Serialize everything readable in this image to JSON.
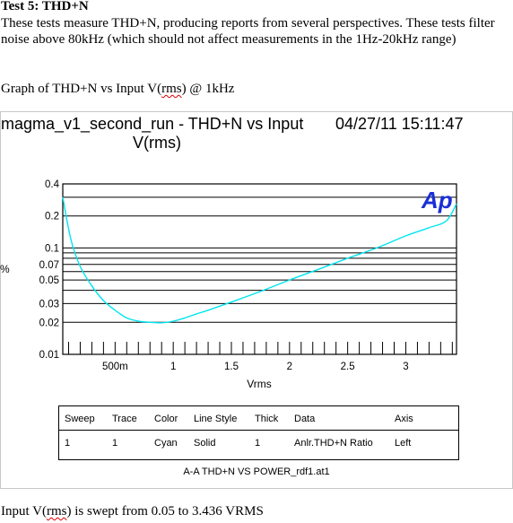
{
  "doc": {
    "heading": "Test 5: THD+N",
    "paragraph": "These tests measure THD+N, producing reports from several perspectives.  These tests filter noise above 80kHz (which should not affect measurements in the 1Hz-20kHz range)",
    "caption_prefix": "Graph of THD+N vs Input V(",
    "caption_sq": "rms",
    "caption_suffix": ") @ 1kHz",
    "footer_prefix": "Input V(",
    "footer_sq": "rms",
    "footer_suffix": ") is swept from 0.05 to 3.436 VRMS"
  },
  "figure": {
    "title_line1": "magma_v1_second_run - THD+N vs Input",
    "title_line2": "V(rms)",
    "timestamp": "04/27/11 15:11:47",
    "logo": "Ap",
    "file_label": "A-A THD+N VS POWER_rdf1.at1",
    "legend": {
      "headers": [
        "Sweep",
        "Trace",
        "Color",
        "Line Style",
        "Thick",
        "Data",
        "Axis"
      ],
      "row": [
        "1",
        "1",
        "Cyan",
        "Solid",
        "1",
        "Anlr.THD+N Ratio",
        "Left"
      ]
    }
  },
  "chart_data": {
    "type": "line",
    "title": "magma_v1_second_run - THD+N vs Input V(rms)",
    "xlabel": "Vrms",
    "ylabel": "%",
    "xscale": "linear",
    "yscale": "log",
    "xlim": [
      0.05,
      3.436
    ],
    "ylim": [
      0.01,
      0.4
    ],
    "x_tick_labels": [
      "500m",
      "1",
      "1.5",
      "2",
      "2.5",
      "3"
    ],
    "x_ticks": [
      0.5,
      1,
      1.5,
      2,
      2.5,
      3
    ],
    "y_tick_labels": [
      "0.4",
      "0.2",
      "0.1",
      "0.07",
      "0.05",
      "0.03",
      "0.02",
      "0.01"
    ],
    "y_ticks": [
      0.4,
      0.2,
      0.1,
      0.07,
      0.05,
      0.03,
      0.02,
      0.01
    ],
    "grid": true,
    "series": [
      {
        "color": "#00e5f0",
        "x": [
          0.05,
          0.12,
          0.2,
          0.3,
          0.4,
          0.5,
          0.6,
          0.7,
          0.8,
          0.9,
          1.0,
          1.1,
          1.2,
          1.3,
          1.5,
          1.75,
          2.0,
          2.25,
          2.5,
          2.75,
          3.0,
          3.2,
          3.35,
          3.436
        ],
        "y": [
          0.3,
          0.12,
          0.067,
          0.044,
          0.032,
          0.026,
          0.022,
          0.0205,
          0.02,
          0.0198,
          0.0205,
          0.022,
          0.024,
          0.026,
          0.031,
          0.039,
          0.05,
          0.063,
          0.08,
          0.1,
          0.13,
          0.155,
          0.18,
          0.26
        ]
      }
    ]
  }
}
